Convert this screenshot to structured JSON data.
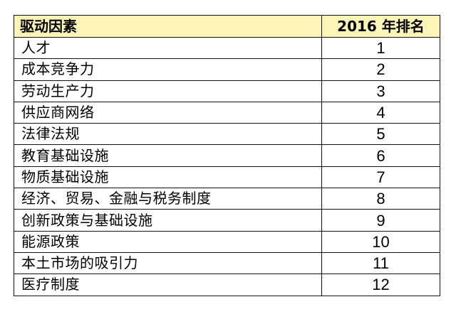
{
  "table": {
    "headers": {
      "factor": "驱动因素",
      "rank": "2016 年排名"
    },
    "rows": [
      {
        "factor": "人才",
        "rank": "1"
      },
      {
        "factor": "成本竞争力",
        "rank": "2"
      },
      {
        "factor": "劳动生产力",
        "rank": "3"
      },
      {
        "factor": "供应商网络",
        "rank": "4"
      },
      {
        "factor": "法律法规",
        "rank": "5"
      },
      {
        "factor": "教育基础设施",
        "rank": "6"
      },
      {
        "factor": "物质基础设施",
        "rank": "7"
      },
      {
        "factor": "经济、贸易、金融与税务制度",
        "rank": "8"
      },
      {
        "factor": "创新政策与基础设施",
        "rank": "9"
      },
      {
        "factor": "能源政策",
        "rank": "10"
      },
      {
        "factor": "本土市场的吸引力",
        "rank": "11"
      },
      {
        "factor": "医疗制度",
        "rank": "12"
      }
    ]
  },
  "colors": {
    "header_background": "#fdf5b8",
    "border": "#111111"
  }
}
